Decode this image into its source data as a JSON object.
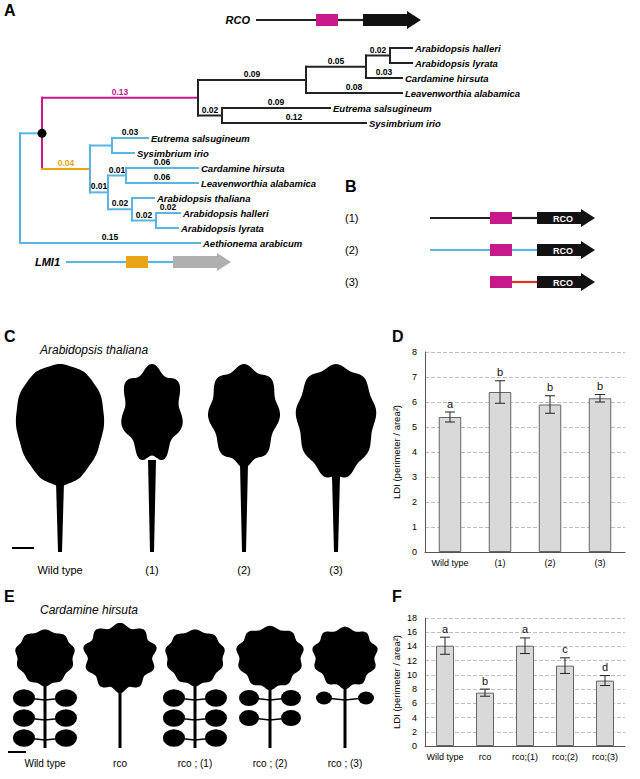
{
  "panels": {
    "A": {
      "label": "A",
      "genes": [
        {
          "name": "RCO",
          "parts": [
            {
              "shape": "line",
              "color": "#222222"
            },
            {
              "shape": "box",
              "color": "#c8198b"
            },
            {
              "shape": "line",
              "color": "#222222"
            },
            {
              "shape": "arrow",
              "color": "#111111"
            }
          ]
        },
        {
          "name": "LMI1",
          "parts": [
            {
              "shape": "line",
              "color": "#5ab4e5"
            },
            {
              "shape": "box",
              "color": "#e8a317"
            },
            {
              "shape": "line",
              "color": "#5ab4e5"
            },
            {
              "shape": "arrow",
              "color": "#b0b0b0"
            }
          ]
        }
      ],
      "tree": {
        "color": "#5ab4e5",
        "children": [
          {
            "marker": "dot",
            "children": [
              {
                "length": 0.13,
                "color": "#c8198b",
                "children": [
                  {
                    "length": 0.09,
                    "color": "#222222",
                    "children": [
                      {
                        "length": 0.05,
                        "children": [
                          {
                            "length": 0.02,
                            "children": [
                              {
                                "name": "Arabidopsis halleri"
                              },
                              {
                                "name": "Arabidopsis lyrata"
                              }
                            ]
                          },
                          {
                            "name": "Cardamine hirsuta",
                            "length": 0.03
                          }
                        ]
                      },
                      {
                        "name": "Leavenworthia alabamica",
                        "length": 0.08
                      }
                    ]
                  },
                  {
                    "length": 0.02,
                    "color": "#222222",
                    "children": [
                      {
                        "name": "Eutrema salsugineum",
                        "length": 0.09
                      },
                      {
                        "name": "Sysimbrium irio",
                        "length": 0.12
                      }
                    ]
                  }
                ]
              },
              {
                "length": 0.04,
                "color": "#e8a317",
                "children": [
                  {
                    "color": "#5ab4e5",
                    "children": [
                      {
                        "name": "Eutrema salsugineum",
                        "length": 0.03
                      },
                      {
                        "name": "Sysimbrium irio"
                      }
                    ]
                  },
                  {
                    "length": 0.01,
                    "color": "#5ab4e5",
                    "children": [
                      {
                        "length": 0.01,
                        "children": [
                          {
                            "name": "Cardamine hirsuta",
                            "length": 0.06
                          },
                          {
                            "name": "Leavenworthia alabamica",
                            "length": 0.06
                          }
                        ]
                      },
                      {
                        "length": 0.02,
                        "children": [
                          {
                            "name": "Arabidopsis thaliana"
                          },
                          {
                            "length": 0.02,
                            "children": [
                              {
                                "name": "Arabidopsis halleri",
                                "length": 0.02
                              },
                              {
                                "name": "Arabidopsis lyrata"
                              }
                            ]
                          }
                        ]
                      }
                    ]
                  }
                ]
              }
            ]
          },
          {
            "name": "Aethionema arabicum",
            "length": 0.15
          }
        ]
      }
    },
    "B": {
      "label": "B",
      "constructs": [
        {
          "label": "(1)",
          "parts": [
            {
              "shape": "line",
              "color": "#222222"
            },
            {
              "shape": "box",
              "color": "#c8198b"
            },
            {
              "shape": "line",
              "color": "#222222"
            },
            {
              "shape": "arrow",
              "color": "#111111",
              "text": "RCO"
            }
          ]
        },
        {
          "label": "(2)",
          "parts": [
            {
              "shape": "line",
              "color": "#5ab4e5"
            },
            {
              "shape": "box",
              "color": "#c8198b"
            },
            {
              "shape": "line",
              "color": "#5ab4e5"
            },
            {
              "shape": "arrow",
              "color": "#111111",
              "text": "RCO"
            }
          ]
        },
        {
          "label": "(3)",
          "parts": [
            {
              "shape": "box",
              "color": "#c8198b"
            },
            {
              "shape": "line",
              "color": "#e0301e"
            },
            {
              "shape": "arrow",
              "color": "#111111",
              "text": "RCO"
            }
          ]
        }
      ]
    },
    "C": {
      "label": "C",
      "species": "Arabidopsis thaliana",
      "leaves": [
        "Wild type",
        "(1)",
        "(2)",
        "(3)"
      ]
    },
    "E": {
      "label": "E",
      "species": "Cardamine hirsuta",
      "leaves": [
        "Wild type",
        "rco",
        "rco ; (1)",
        "rco ; (2)",
        "rco ; (3)"
      ]
    }
  },
  "chart_data": [
    {
      "panel": "D",
      "type": "bar",
      "categories": [
        "Wild type",
        "(1)",
        "(2)",
        "(3)"
      ],
      "values": [
        5.4,
        6.4,
        5.9,
        6.15
      ],
      "errors": [
        0.2,
        0.45,
        0.35,
        0.15
      ],
      "letters": [
        "a",
        "b",
        "b",
        "b"
      ],
      "y_label": "LDI (perimeter / area²)",
      "ylim": [
        0,
        8
      ],
      "yticks": [
        0,
        1,
        2,
        3,
        4,
        5,
        6,
        7,
        8
      ],
      "grid": true,
      "color": "#d9d9d9"
    },
    {
      "panel": "F",
      "type": "bar",
      "categories": [
        "Wild type",
        "rco",
        "rco;(1)",
        "rco;(2)",
        "rco;(3)"
      ],
      "values": [
        14.1,
        7.5,
        14.1,
        11.3,
        9.2
      ],
      "errors": [
        1.2,
        0.5,
        1.1,
        1.1,
        0.7
      ],
      "letters": [
        "a",
        "b",
        "a",
        "c",
        "d"
      ],
      "y_label": "LDI (perimeter / area²)",
      "ylim": [
        0,
        18
      ],
      "yticks": [
        0,
        2,
        4,
        6,
        8,
        10,
        12,
        14,
        16,
        18
      ],
      "grid": true,
      "color": "#d9d9d9"
    }
  ]
}
